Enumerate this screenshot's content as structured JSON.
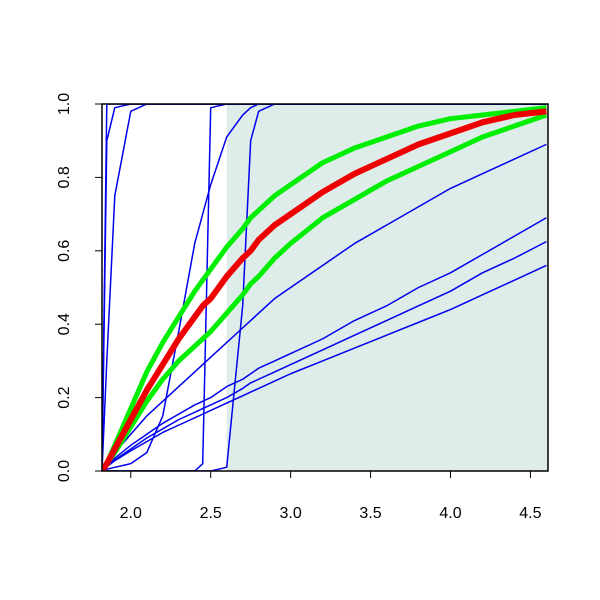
{
  "chart_data": {
    "type": "line",
    "x": [
      1.82,
      1.85,
      1.9,
      2.0,
      2.1,
      2.2,
      2.3,
      2.4,
      2.45,
      2.5,
      2.6,
      2.7,
      2.75,
      2.8,
      2.9,
      3.0,
      3.2,
      3.4,
      3.6,
      3.8,
      4.0,
      4.2,
      4.4,
      4.6
    ],
    "series": [
      {
        "color": "#0000ee",
        "line_width": 1.5,
        "values": [
          0,
          1,
          1,
          1,
          1,
          1,
          1,
          1,
          1,
          1,
          1,
          1,
          1,
          1,
          1,
          1,
          1,
          1,
          1,
          1,
          1,
          1,
          1,
          1
        ]
      },
      {
        "color": "#0000ee",
        "line_width": 1.5,
        "values": [
          0,
          0.9,
          0.99,
          1,
          1,
          1,
          1,
          1,
          1,
          1,
          1,
          1,
          1,
          1,
          1,
          1,
          1,
          1,
          1,
          1,
          1,
          1,
          1,
          1
        ]
      },
      {
        "color": "#0000ee",
        "line_width": 1.5,
        "values": [
          0,
          0.3,
          0.75,
          0.98,
          1,
          1,
          1,
          1,
          1,
          1,
          1,
          1,
          1,
          1,
          1,
          1,
          1,
          1,
          1,
          1,
          1,
          1,
          1,
          1
        ]
      },
      {
        "color": "#0000ee",
        "line_width": 1.5,
        "values": [
          0,
          0,
          0,
          0,
          0,
          0,
          0,
          0,
          0.02,
          0.99,
          1,
          1,
          1,
          1,
          1,
          1,
          1,
          1,
          1,
          1,
          1,
          1,
          1,
          1
        ]
      },
      {
        "color": "#0000ee",
        "line_width": 1.5,
        "values": [
          0,
          0,
          0,
          0,
          0,
          0,
          0,
          0,
          0,
          0,
          0.01,
          0.45,
          0.9,
          0.98,
          1,
          1,
          1,
          1,
          1,
          1,
          1,
          1,
          1,
          1
        ]
      },
      {
        "color": "#0000ee",
        "line_width": 1.5,
        "values": [
          0,
          0.005,
          0.01,
          0.02,
          0.05,
          0.15,
          0.38,
          0.62,
          0.7,
          0.78,
          0.91,
          0.97,
          0.99,
          1,
          1,
          1,
          1,
          1,
          1,
          1,
          1,
          1,
          1,
          1
        ]
      },
      {
        "color": "#0000ee",
        "line_width": 1.5,
        "values": [
          0,
          0.02,
          0.05,
          0.1,
          0.15,
          0.19,
          0.23,
          0.27,
          0.29,
          0.31,
          0.35,
          0.39,
          0.41,
          0.43,
          0.47,
          0.5,
          0.56,
          0.62,
          0.67,
          0.72,
          0.77,
          0.81,
          0.85,
          0.89
        ]
      },
      {
        "color": "#0000ee",
        "line_width": 1.5,
        "values": [
          0,
          0.015,
          0.035,
          0.07,
          0.1,
          0.13,
          0.155,
          0.18,
          0.19,
          0.2,
          0.23,
          0.25,
          0.265,
          0.28,
          0.3,
          0.32,
          0.36,
          0.41,
          0.45,
          0.5,
          0.54,
          0.59,
          0.64,
          0.69
        ]
      },
      {
        "color": "#0000ee",
        "line_width": 1.5,
        "values": [
          0,
          0.013,
          0.03,
          0.06,
          0.09,
          0.115,
          0.14,
          0.16,
          0.17,
          0.18,
          0.2,
          0.225,
          0.24,
          0.25,
          0.27,
          0.29,
          0.33,
          0.37,
          0.41,
          0.45,
          0.49,
          0.54,
          0.58,
          0.625
        ]
      },
      {
        "color": "#0000ee",
        "line_width": 1.5,
        "values": [
          0,
          0.012,
          0.028,
          0.055,
          0.08,
          0.105,
          0.125,
          0.145,
          0.155,
          0.165,
          0.185,
          0.205,
          0.215,
          0.225,
          0.245,
          0.265,
          0.3,
          0.335,
          0.37,
          0.405,
          0.44,
          0.48,
          0.52,
          0.56
        ]
      },
      {
        "color": "#00ee00",
        "line_width": 5,
        "values": [
          0,
          0.02,
          0.07,
          0.17,
          0.27,
          0.35,
          0.42,
          0.49,
          0.52,
          0.55,
          0.61,
          0.66,
          0.69,
          0.71,
          0.75,
          0.78,
          0.84,
          0.88,
          0.91,
          0.94,
          0.96,
          0.97,
          0.98,
          0.99
        ]
      },
      {
        "color": "#00ee00",
        "line_width": 5,
        "values": [
          0,
          0.02,
          0.05,
          0.12,
          0.19,
          0.25,
          0.3,
          0.34,
          0.36,
          0.38,
          0.43,
          0.48,
          0.51,
          0.53,
          0.58,
          0.62,
          0.69,
          0.74,
          0.79,
          0.83,
          0.87,
          0.91,
          0.94,
          0.97
        ]
      },
      {
        "color": "#ee0000",
        "line_width": 6,
        "values": [
          0,
          0.02,
          0.06,
          0.14,
          0.22,
          0.29,
          0.36,
          0.42,
          0.45,
          0.47,
          0.53,
          0.58,
          0.6,
          0.63,
          0.67,
          0.7,
          0.76,
          0.81,
          0.85,
          0.89,
          0.92,
          0.95,
          0.97,
          0.98
        ]
      }
    ],
    "shaded_region": {
      "x": [
        2.6,
        4.61
      ],
      "color": "#deecea"
    },
    "xlim": [
      1.82,
      4.61
    ],
    "ylim": [
      0,
      1
    ],
    "xticks": [
      {
        "value": 2.0,
        "label": "2.0"
      },
      {
        "value": 2.5,
        "label": "2.5"
      },
      {
        "value": 3.0,
        "label": "3.0"
      },
      {
        "value": 3.5,
        "label": "3.5"
      },
      {
        "value": 4.0,
        "label": "4.0"
      },
      {
        "value": 4.5,
        "label": "4.5"
      }
    ],
    "yticks": [
      {
        "value": 0,
        "label": "0.0"
      },
      {
        "value": 0.2,
        "label": "0.2"
      },
      {
        "value": 0.4,
        "label": "0.4"
      },
      {
        "value": 0.6,
        "label": "0.6"
      },
      {
        "value": 0.8,
        "label": "0.8"
      },
      {
        "value": 1,
        "label": "1.0"
      }
    ]
  }
}
